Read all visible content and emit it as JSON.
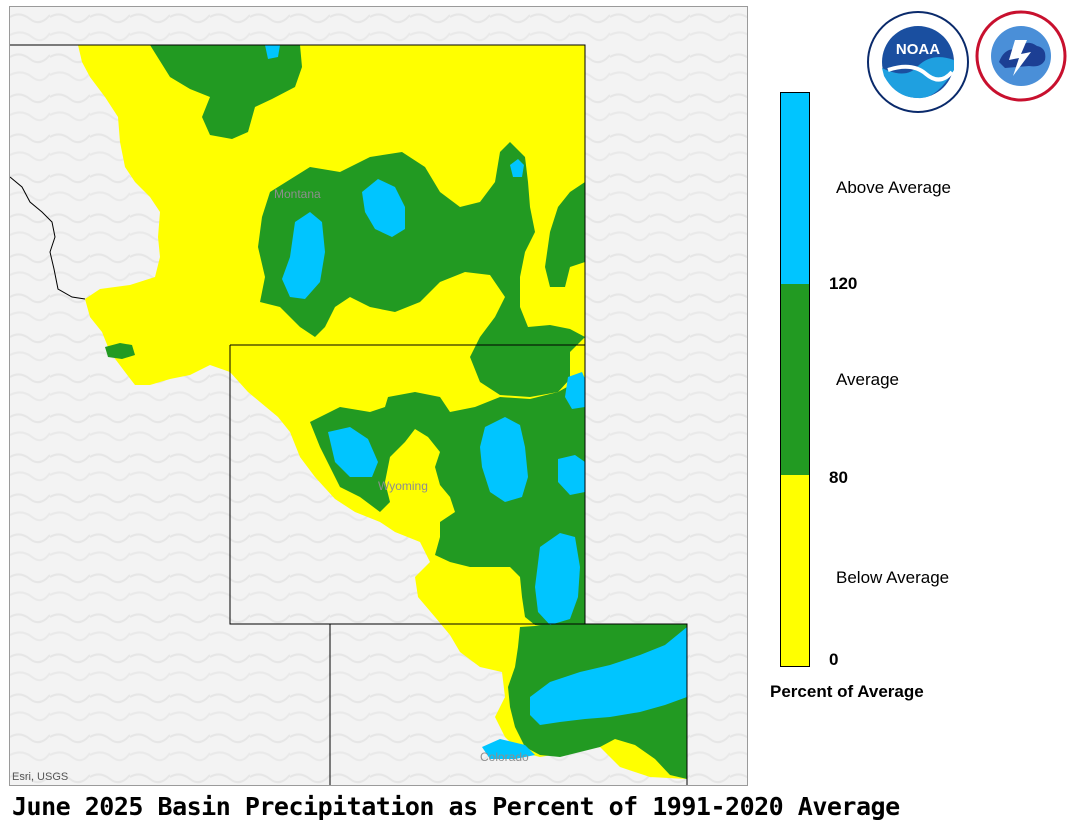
{
  "map": {
    "title": "June 2025 Basin Precipitation as Percent of 1991-2020 Average",
    "attribution": "Esri, USGS",
    "place_labels": {
      "montana": "Montana",
      "wyoming": "Wyoming",
      "colorado": "Colorado"
    }
  },
  "legend": {
    "title": "Percent of Average",
    "categories": [
      {
        "label": "Above Average",
        "color": "#00c5ff"
      },
      {
        "label": "Average",
        "color": "#229a22"
      },
      {
        "label": "Below Average",
        "color": "#ffff00"
      }
    ],
    "breaks": [
      "120",
      "80",
      "0"
    ]
  },
  "logos": {
    "noaa": "NOAA",
    "nws": "NATIONAL WEATHER SERVICE"
  },
  "colors": {
    "below": "#ffff00",
    "average": "#229a22",
    "above": "#00c5ff",
    "basemap": "#f4f4f4"
  }
}
